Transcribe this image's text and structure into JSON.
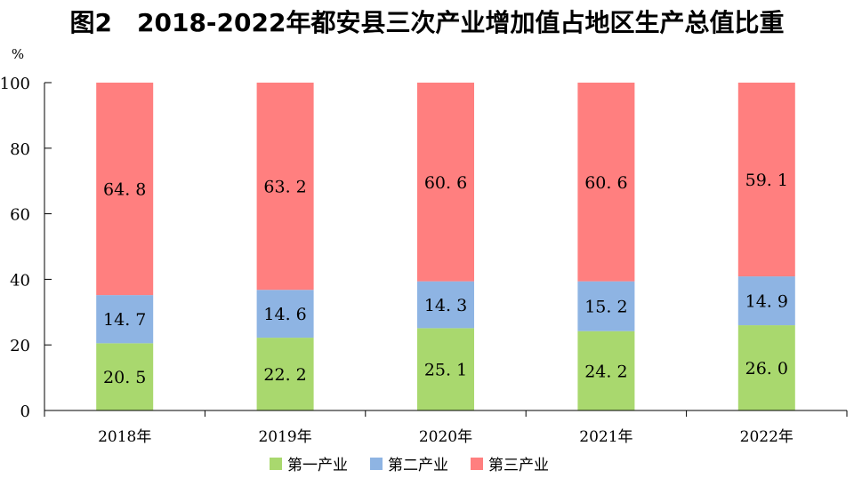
{
  "chart_data": {
    "type": "bar",
    "stacked": true,
    "title": "图2　2018-2022年都安县三次产业增加值占地区生产总值比重",
    "ylabel": "%",
    "xlabel": "",
    "ylim": [
      0,
      100
    ],
    "yticks": [
      0,
      20,
      40,
      60,
      80,
      100
    ],
    "categories": [
      "2018年",
      "2019年",
      "2020年",
      "2021年",
      "2022年"
    ],
    "series": [
      {
        "name": "第一产业",
        "color": "#a9d86e",
        "values": [
          20.5,
          22.2,
          25.1,
          24.2,
          26.0
        ]
      },
      {
        "name": "第二产业",
        "color": "#8eb4e3",
        "values": [
          14.7,
          14.6,
          14.3,
          15.2,
          14.9
        ]
      },
      {
        "name": "第三产业",
        "color": "#ff7f7f",
        "values": [
          64.8,
          63.2,
          60.6,
          60.6,
          59.1
        ]
      }
    ],
    "grid": false,
    "legend_position": "bottom"
  }
}
